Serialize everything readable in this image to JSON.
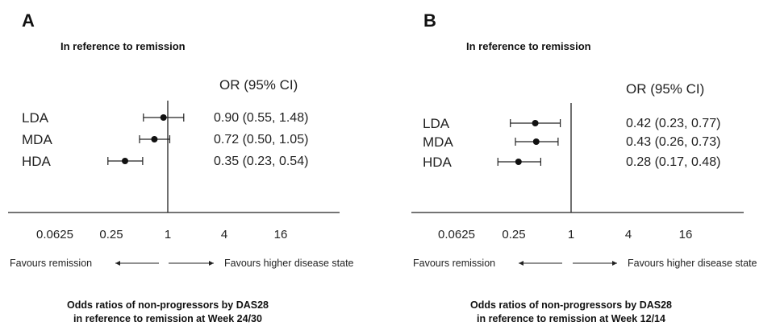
{
  "chart_data": [
    {
      "type": "forest",
      "panel": "A",
      "title": "In reference to remission",
      "column_header": "OR (95% CI)",
      "x_scale": "log2",
      "xlim": [
        0.0625,
        16
      ],
      "reference_line": 1,
      "x_ticks": [
        "0.0625",
        "0.25",
        "1",
        "4",
        "16"
      ],
      "x_tick_values": [
        0.0625,
        0.25,
        1,
        4,
        16
      ],
      "rows": [
        {
          "label": "LDA",
          "or": 0.9,
          "lo": 0.55,
          "hi": 1.48,
          "text": "0.90 (0.55, 1.48)"
        },
        {
          "label": "MDA",
          "or": 0.72,
          "lo": 0.5,
          "hi": 1.05,
          "text": "0.72 (0.50, 1.05)"
        },
        {
          "label": "HDA",
          "or": 0.35,
          "lo": 0.23,
          "hi": 0.54,
          "text": "0.35 (0.23, 0.54)"
        }
      ],
      "favours_left": "Favours remission",
      "favours_right": "Favours higher disease state",
      "caption_line1": "Odds ratios of non-progressors by DAS28",
      "caption_line2": "in reference to remission at Week 24/30"
    },
    {
      "type": "forest",
      "panel": "B",
      "title": "In reference to remission",
      "column_header": "OR (95% CI)",
      "x_scale": "log2",
      "xlim": [
        0.0625,
        16
      ],
      "reference_line": 1,
      "x_ticks": [
        "0.0625",
        "0.25",
        "1",
        "4",
        "16"
      ],
      "x_tick_values": [
        0.0625,
        0.25,
        1,
        4,
        16
      ],
      "rows": [
        {
          "label": "LDA",
          "or": 0.42,
          "lo": 0.23,
          "hi": 0.77,
          "text": "0.42 (0.23, 0.77)"
        },
        {
          "label": "MDA",
          "or": 0.43,
          "lo": 0.26,
          "hi": 0.73,
          "text": "0.43 (0.26, 0.73)"
        },
        {
          "label": "HDA",
          "or": 0.28,
          "lo": 0.17,
          "hi": 0.48,
          "text": "0.28 (0.17, 0.48)"
        }
      ],
      "favours_left": "Favours remission",
      "favours_right": "Favours higher disease state",
      "caption_line1": "Odds ratios of non-progressors by DAS28",
      "caption_line2": "in reference to remission at Week 12/14"
    }
  ]
}
